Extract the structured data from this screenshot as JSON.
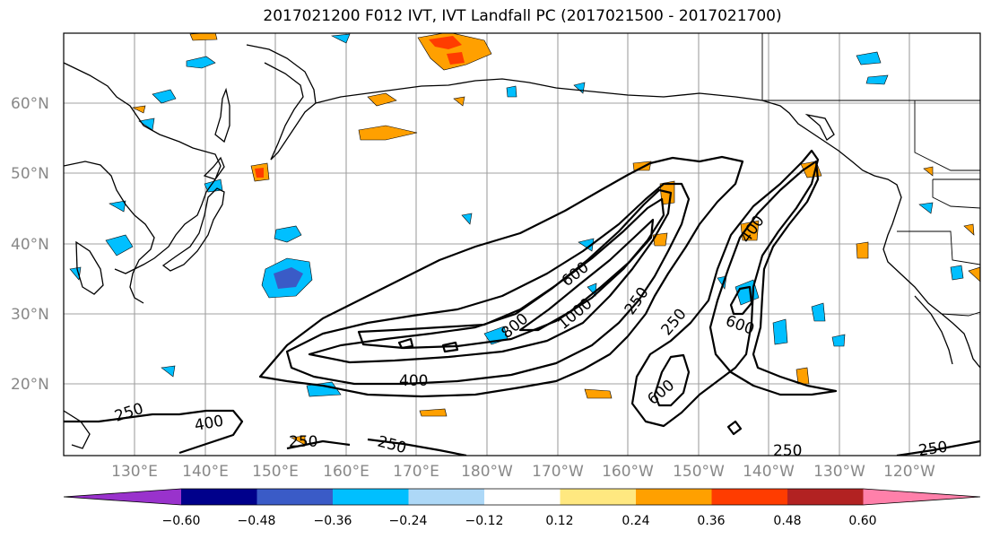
{
  "title": "2017021200 F012 IVT, IVT Landfall PC (2017021500 - 2017021700)",
  "map": {
    "lon_ticks": [
      "130°E",
      "140°E",
      "150°E",
      "160°E",
      "170°E",
      "180°W",
      "170°W",
      "160°W",
      "150°W",
      "140°W",
      "130°W",
      "120°W"
    ],
    "lat_ticks": [
      "60°N",
      "50°N",
      "40°N",
      "30°N",
      "20°N"
    ],
    "grid": true,
    "contour_labels": [
      "250",
      "400",
      "600",
      "800",
      "1000",
      "250",
      "400",
      "600",
      "600",
      "250",
      "250",
      "250",
      "250",
      "400"
    ]
  },
  "colorbar": {
    "tick_labels": [
      "−0.60",
      "−0.48",
      "−0.36",
      "−0.24",
      "−0.12",
      "0.12",
      "0.24",
      "0.36",
      "0.48",
      "0.60"
    ],
    "colors": [
      "#9932cc",
      "#00008b",
      "#3a5bc7",
      "#00bfff",
      "#add8f7",
      "#ffffff",
      "#ffe880",
      "#ffa000",
      "#ff3c00",
      "#b22222",
      "#ff80aa"
    ],
    "extend": "both"
  },
  "colors": {
    "positive_mid": "#ffa000",
    "positive_high": "#ff3c00",
    "positive_low": "#ffe880",
    "negative_mid": "#00bfff",
    "negative_low": "#add8f7",
    "negative_high": "#3a5bc7"
  }
}
